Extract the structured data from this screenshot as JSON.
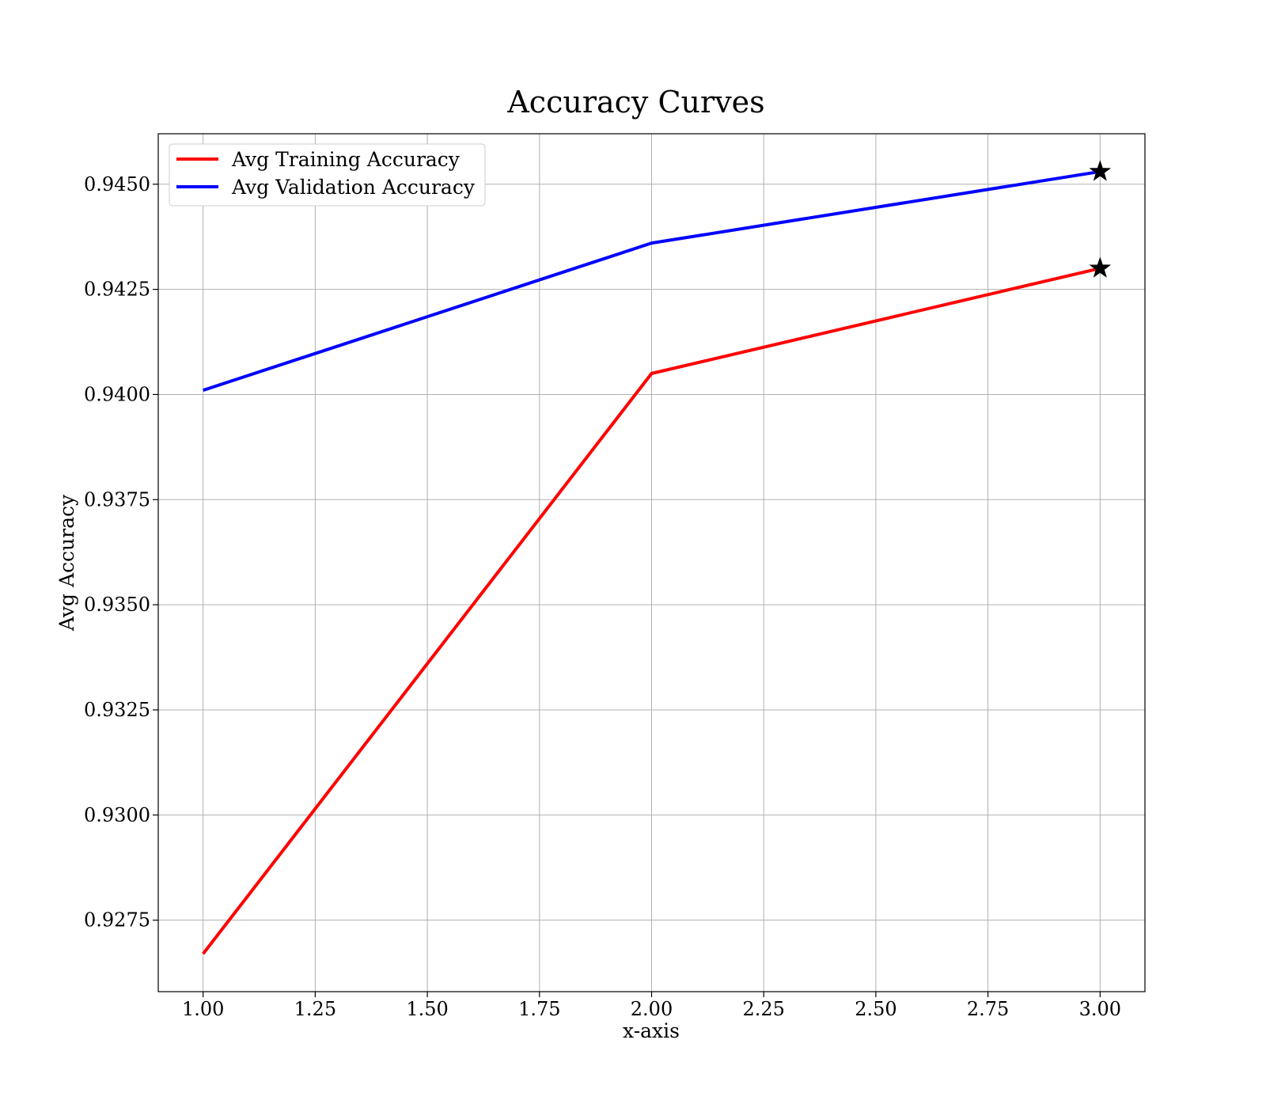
{
  "chart_data": {
    "type": "line",
    "title": "Accuracy Curves",
    "xlabel": "x-axis",
    "ylabel": "Avg Accuracy",
    "xlim": [
      0.9,
      3.1
    ],
    "ylim": [
      0.9258,
      0.9462
    ],
    "x_ticks": [
      1.0,
      1.25,
      1.5,
      1.75,
      2.0,
      2.25,
      2.5,
      2.75,
      3.0
    ],
    "x_tick_labels": [
      "1.00",
      "1.25",
      "1.50",
      "1.75",
      "2.00",
      "2.25",
      "2.50",
      "2.75",
      "3.00"
    ],
    "y_ticks": [
      0.9275,
      0.93,
      0.9325,
      0.935,
      0.9375,
      0.94,
      0.9425,
      0.945
    ],
    "y_tick_labels": [
      "0.9275",
      "0.9300",
      "0.9325",
      "0.9350",
      "0.9375",
      "0.9400",
      "0.9425",
      "0.9450"
    ],
    "grid": true,
    "legend_position": "top-left",
    "x": [
      1.0,
      2.0,
      3.0
    ],
    "series": [
      {
        "name": "Avg Training Accuracy",
        "color": "#ff0000",
        "values": [
          0.9267,
          0.9405,
          0.943
        ],
        "marker": {
          "type": "star",
          "x": 3.0,
          "y": 0.943
        }
      },
      {
        "name": "Avg Validation Accuracy",
        "color": "#0000ff",
        "values": [
          0.9401,
          0.9436,
          0.9453
        ],
        "marker": {
          "type": "star",
          "x": 3.0,
          "y": 0.9453
        }
      }
    ]
  }
}
